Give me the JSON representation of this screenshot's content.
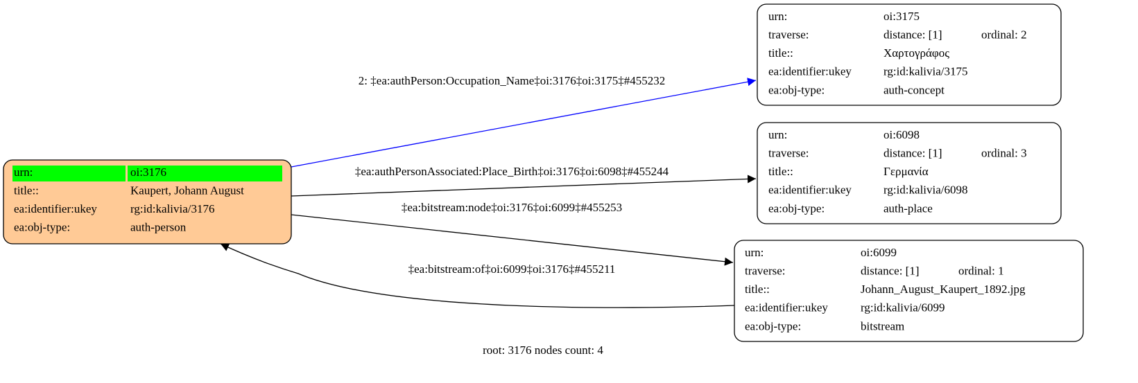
{
  "nodes": [
    {
      "rows": [
        [
          "urn:",
          "oi:3176"
        ],
        [
          "title::",
          "Kaupert, Johann August"
        ],
        [
          "ea:identifier:ukey",
          "rg:id:kalivia/3176"
        ],
        [
          "ea:obj-type:",
          "auth-person"
        ]
      ]
    },
    {
      "rows": [
        [
          "urn:",
          "oi:3175"
        ],
        [
          "traverse:",
          "distance: [1]",
          "ordinal: 2"
        ],
        [
          "title::",
          "Χαρτογράφος"
        ],
        [
          "ea:identifier:ukey",
          "rg:id:kalivia/3175"
        ],
        [
          "ea:obj-type:",
          "auth-concept"
        ]
      ]
    },
    {
      "rows": [
        [
          "urn:",
          "oi:6098"
        ],
        [
          "traverse:",
          "distance: [1]",
          "ordinal: 3"
        ],
        [
          "title::",
          "Γερμανία"
        ],
        [
          "ea:identifier:ukey",
          "rg:id:kalivia/6098"
        ],
        [
          "ea:obj-type:",
          "auth-place"
        ]
      ]
    },
    {
      "rows": [
        [
          "urn:",
          "oi:6099"
        ],
        [
          "traverse:",
          "distance: [1]",
          "ordinal: 1"
        ],
        [
          "title::",
          "Johann_August_Kaupert_1892.jpg"
        ],
        [
          "ea:identifier:ukey",
          "rg:id:kalivia/6099"
        ],
        [
          "ea:obj-type:",
          "bitstream"
        ]
      ]
    }
  ],
  "edges": [
    {
      "label": "2: ‡ea:authPerson:Occupation_Name‡oi:3176‡oi:3175‡#455232"
    },
    {
      "label": "‡ea:authPersonAssociated:Place_Birth‡oi:3176‡oi:6098‡#455244"
    },
    {
      "label": "‡ea:bitstream:node‡oi:3176‡oi:6099‡#455253"
    },
    {
      "label": "‡ea:bitstream:of‡oi:6099‡oi:3176‡#455211"
    }
  ],
  "footer": "root: 3176 nodes count: 4"
}
